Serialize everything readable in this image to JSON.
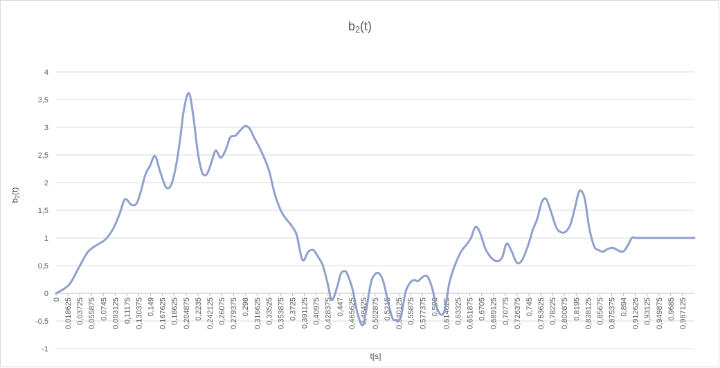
{
  "chart_data": {
    "type": "line",
    "title_base": "b",
    "title_sub": "2",
    "title_rest": "(t)",
    "ylabel_base": "b",
    "ylabel_sub": "2",
    "ylabel_rest": "(t)",
    "xlabel": "t[s]",
    "ylim": [
      -1,
      4
    ],
    "yticks": [
      -1,
      -0.5,
      0,
      0.5,
      1,
      1.5,
      2,
      2.5,
      3,
      3.5,
      4
    ],
    "ytick_labels": [
      "-1",
      "-0,5",
      "0",
      "0,5",
      "1",
      "1,5",
      "2",
      "2,5",
      "3",
      "3,5",
      "4"
    ],
    "grid": true,
    "legend": "none",
    "series_color": "#8ea0cc",
    "xtick_labels": [
      "0",
      "0,018625",
      "0,03725",
      "0,055875",
      "0,0745",
      "0,093125",
      "0,11175",
      "0,130375",
      "0,149",
      "0,167625",
      "0,18625",
      "0,204875",
      "0,2235",
      "0,242125",
      "0,26075",
      "0,279375",
      "0,298",
      "0,316625",
      "0,33525",
      "0,353875",
      "0,3725",
      "0,391125",
      "0,40975",
      "0,428375",
      "0,447",
      "0,465625",
      "0,48425",
      "0,502875",
      "0,5215",
      "0,540125",
      "0,55875",
      "0,577375",
      "0,596",
      "0,614625",
      "0,63325",
      "0,651875",
      "0,6705",
      "0,689125",
      "0,70775",
      "0,726375",
      "0,745",
      "0,763625",
      "0,78225",
      "0,800875",
      "0,8195",
      "0,838125",
      "0,85675",
      "0,875375",
      "0,894",
      "0,912625",
      "0,93125",
      "0,949875",
      "0,9685",
      "0,987125"
    ],
    "x": [
      0,
      0.02,
      0.035,
      0.05,
      0.065,
      0.075,
      0.083,
      0.091,
      0.1,
      0.108,
      0.118,
      0.126,
      0.133,
      0.14,
      0.147,
      0.155,
      0.163,
      0.172,
      0.18,
      0.187,
      0.194,
      0.2,
      0.208,
      0.215,
      0.222,
      0.229,
      0.236,
      0.243,
      0.25,
      0.258,
      0.266,
      0.273,
      0.281,
      0.289,
      0.296,
      0.303,
      0.31,
      0.318,
      0.326,
      0.334,
      0.343,
      0.352,
      0.36,
      0.369,
      0.377,
      0.386,
      0.395,
      0.403,
      0.411,
      0.418,
      0.425,
      0.432,
      0.44,
      0.446,
      0.453,
      0.458,
      0.465,
      0.472,
      0.48,
      0.486,
      0.493,
      0.5,
      0.507,
      0.513,
      0.52,
      0.527,
      0.533,
      0.54,
      0.547,
      0.554,
      0.561,
      0.567,
      0.575,
      0.582,
      0.589,
      0.595,
      0.602,
      0.609,
      0.616,
      0.623,
      0.63,
      0.636,
      0.643,
      0.65,
      0.657,
      0.664,
      0.672,
      0.679,
      0.686,
      0.692,
      0.699,
      0.706,
      0.714,
      0.722,
      0.73,
      0.739,
      0.747,
      0.754,
      0.761,
      0.768,
      0.776,
      0.784,
      0.792,
      0.799,
      0.806,
      0.813,
      0.82,
      0.828,
      0.835,
      0.843,
      0.85,
      0.857,
      0.864,
      0.872,
      0.88,
      0.888,
      0.895,
      0.902,
      0.908,
      0.914,
      0.92,
      0.926,
      0.934,
      0.943,
      0.952,
      0.96,
      0.967,
      0.974,
      0.981,
      0.988,
      0.995,
      1.0
    ],
    "y": [
      0,
      0.15,
      0.45,
      0.75,
      0.88,
      0.95,
      1.05,
      1.2,
      1.45,
      1.7,
      1.6,
      1.62,
      1.85,
      2.15,
      2.3,
      2.48,
      2.2,
      1.92,
      1.95,
      2.25,
      2.75,
      3.3,
      3.62,
      3.2,
      2.55,
      2.18,
      2.15,
      2.35,
      2.58,
      2.45,
      2.6,
      2.82,
      2.85,
      2.95,
      3.02,
      2.98,
      2.82,
      2.65,
      2.45,
      2.2,
      1.78,
      1.5,
      1.35,
      1.22,
      1.05,
      0.6,
      0.75,
      0.78,
      0.65,
      0.5,
      0.2,
      -0.12,
      0.1,
      0.35,
      0.4,
      0.3,
      0.05,
      -0.35,
      -0.58,
      -0.3,
      0.18,
      0.35,
      0.35,
      0.2,
      -0.15,
      -0.45,
      -0.48,
      -0.44,
      0.0,
      0.18,
      0.24,
      0.22,
      0.3,
      0.3,
      0.1,
      -0.2,
      -0.38,
      -0.3,
      0.18,
      0.45,
      0.65,
      0.78,
      0.88,
      1.0,
      1.2,
      1.1,
      0.82,
      0.68,
      0.6,
      0.58,
      0.65,
      0.9,
      0.75,
      0.55,
      0.6,
      0.85,
      1.15,
      1.35,
      1.65,
      1.7,
      1.45,
      1.18,
      1.1,
      1.12,
      1.25,
      1.55,
      1.85,
      1.72,
      1.2,
      0.85,
      0.78,
      0.75,
      0.8,
      0.82,
      0.78,
      0.75,
      0.85,
      1.0,
      1.0,
      1.0,
      1.0,
      1.0,
      1.0,
      1.0,
      1.0,
      1.0,
      1.0,
      1.0,
      1.0,
      1.0,
      1.0,
      1.0
    ]
  }
}
